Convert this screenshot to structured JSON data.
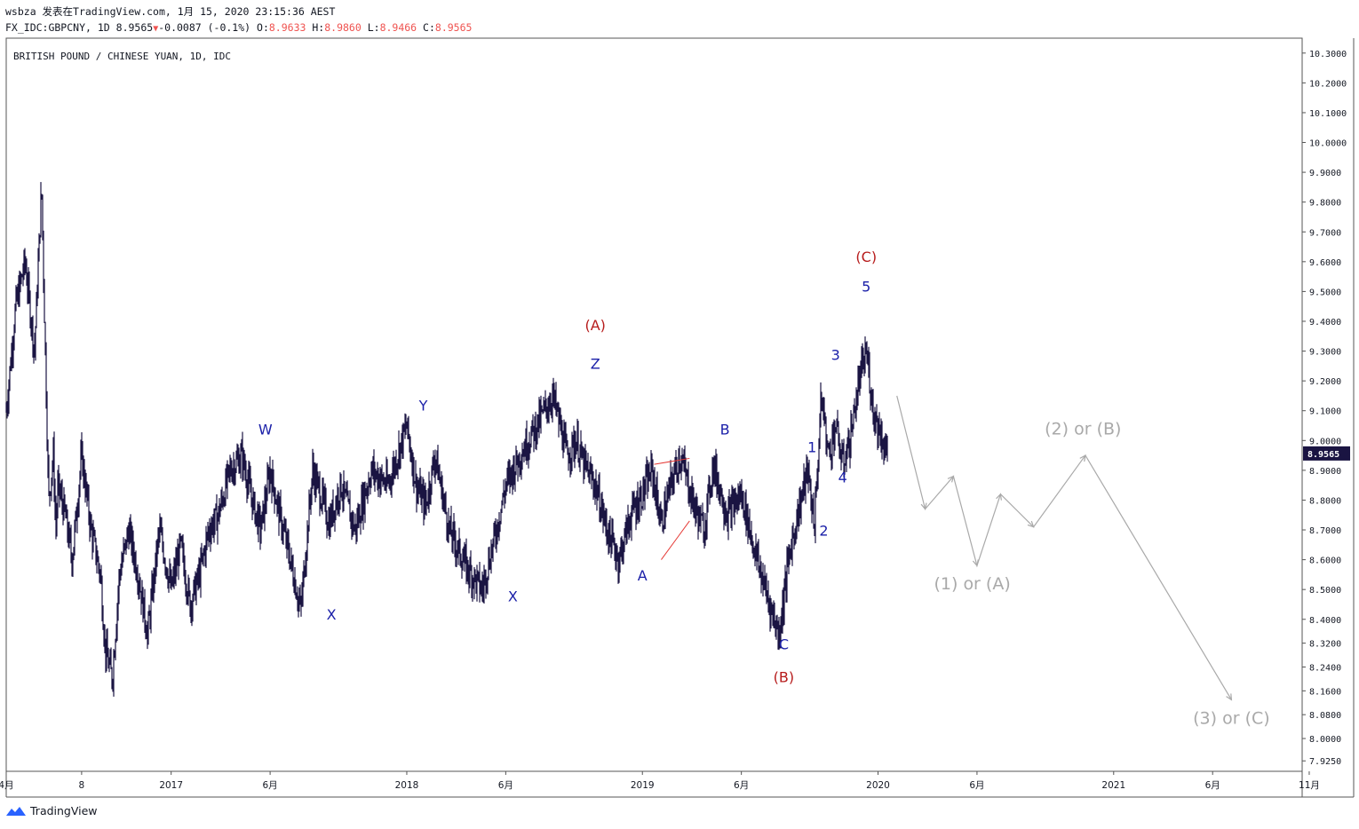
{
  "header": {
    "line1": "wsbza 发表在TradingView.com, 1月 15, 2020 23:15:36 AEST",
    "symbol": "FX_IDC:GBPCNY, 1D",
    "last": "8.9565",
    "change": "-0.0087 (-0.1%)",
    "open_label": "O:",
    "open": "8.9633",
    "high_label": "H:",
    "high": "8.9860",
    "low_label": "L:",
    "low": "8.9466",
    "close_label": "C:",
    "close": "8.9565"
  },
  "footer": {
    "brand": "TradingView"
  },
  "colors": {
    "candle": "#1a1442",
    "wave_blue": "#1a1fa8",
    "wave_red": "#b71c1c",
    "projection": "#a9a9a9",
    "price_tag": "#1a1442",
    "trend_red": "#e53935"
  },
  "chart_data": {
    "type": "line",
    "title": "BRITISH POUND / CHINESE YUAN, 1D, IDC",
    "ylim": [
      7.89,
      10.35
    ],
    "xlim": [
      2016.3,
      2021.8
    ],
    "last_price": "8.9565",
    "y_ticks": [
      {
        "v": 10.3,
        "label": "10.3000"
      },
      {
        "v": 10.2,
        "label": "10.2000"
      },
      {
        "v": 10.1,
        "label": "10.1000"
      },
      {
        "v": 10.0,
        "label": "10.0000"
      },
      {
        "v": 9.9,
        "label": "9.9000"
      },
      {
        "v": 9.8,
        "label": "9.8000"
      },
      {
        "v": 9.7,
        "label": "9.7000"
      },
      {
        "v": 9.6,
        "label": "9.6000"
      },
      {
        "v": 9.5,
        "label": "9.5000"
      },
      {
        "v": 9.4,
        "label": "9.4000"
      },
      {
        "v": 9.3,
        "label": "9.3000"
      },
      {
        "v": 9.2,
        "label": "9.2000"
      },
      {
        "v": 9.1,
        "label": "9.1000"
      },
      {
        "v": 9.0,
        "label": "9.0000"
      },
      {
        "v": 8.9,
        "label": "8.9000"
      },
      {
        "v": 8.8,
        "label": "8.8000"
      },
      {
        "v": 8.7,
        "label": "8.7000"
      },
      {
        "v": 8.6,
        "label": "8.6000"
      },
      {
        "v": 8.5,
        "label": "8.5000"
      },
      {
        "v": 8.4,
        "label": "8.4000"
      },
      {
        "v": 8.32,
        "label": "8.3200"
      },
      {
        "v": 8.24,
        "label": "8.2400"
      },
      {
        "v": 8.16,
        "label": "8.1600"
      },
      {
        "v": 8.08,
        "label": "8.0800"
      },
      {
        "v": 8.0,
        "label": "8.0000"
      },
      {
        "v": 7.925,
        "label": "7.9250"
      }
    ],
    "x_ticks": [
      {
        "t": 2016.3,
        "label": "4月"
      },
      {
        "t": 2016.62,
        "label": "8"
      },
      {
        "t": 2017.0,
        "label": "2017"
      },
      {
        "t": 2017.42,
        "label": "6月"
      },
      {
        "t": 2018.0,
        "label": "2018"
      },
      {
        "t": 2018.42,
        "label": "6月"
      },
      {
        "t": 2019.0,
        "label": "2019"
      },
      {
        "t": 2019.42,
        "label": "6月"
      },
      {
        "t": 2020.0,
        "label": "2020"
      },
      {
        "t": 2020.42,
        "label": "6月"
      },
      {
        "t": 2021.0,
        "label": "2021"
      },
      {
        "t": 2021.42,
        "label": "6月"
      },
      {
        "t": 2021.83,
        "label": "11月"
      }
    ],
    "series": [
      {
        "name": "GBPCNY close (approx.)",
        "x": [
          2016.3,
          2016.34,
          2016.38,
          2016.42,
          2016.45,
          2016.48,
          2016.5,
          2016.51,
          2016.52,
          2016.55,
          2016.58,
          2016.62,
          2016.66,
          2016.7,
          2016.72,
          2016.75,
          2016.78,
          2016.82,
          2016.86,
          2016.9,
          2016.95,
          2017.0,
          2017.04,
          2017.08,
          2017.12,
          2017.16,
          2017.2,
          2017.25,
          2017.3,
          2017.35,
          2017.38,
          2017.42,
          2017.46,
          2017.5,
          2017.55,
          2017.6,
          2017.65,
          2017.67,
          2017.72,
          2017.78,
          2017.85,
          2017.92,
          2018.0,
          2018.04,
          2018.08,
          2018.12,
          2018.18,
          2018.25,
          2018.32,
          2018.38,
          2018.42,
          2018.48,
          2018.55,
          2018.62,
          2018.68,
          2018.72,
          2018.75,
          2018.8,
          2018.85,
          2018.9,
          2018.95,
          2019.0,
          2019.04,
          2019.08,
          2019.12,
          2019.16,
          2019.22,
          2019.26,
          2019.3,
          2019.36,
          2019.42,
          2019.48,
          2019.54,
          2019.58,
          2019.62,
          2019.65,
          2019.7,
          2019.73,
          2019.76,
          2019.79,
          2019.82,
          2019.85,
          2019.88,
          2019.92,
          2019.95,
          2019.98,
          2020.0,
          2020.04
        ],
        "y": [
          9.1,
          9.45,
          9.6,
          9.3,
          9.85,
          8.8,
          8.95,
          8.7,
          8.85,
          8.75,
          8.6,
          8.95,
          8.7,
          8.55,
          8.3,
          8.2,
          8.55,
          8.7,
          8.55,
          8.35,
          8.7,
          8.5,
          8.65,
          8.45,
          8.55,
          8.7,
          8.75,
          8.9,
          8.95,
          8.78,
          8.7,
          8.9,
          8.75,
          8.62,
          8.43,
          8.9,
          8.78,
          8.72,
          8.85,
          8.7,
          8.9,
          8.85,
          9.05,
          8.85,
          8.78,
          8.95,
          8.7,
          8.58,
          8.5,
          8.7,
          8.85,
          8.95,
          9.05,
          9.15,
          8.95,
          9.0,
          8.92,
          8.85,
          8.7,
          8.6,
          8.75,
          8.82,
          8.9,
          8.72,
          8.85,
          8.95,
          8.78,
          8.7,
          8.92,
          8.75,
          8.82,
          8.62,
          8.45,
          8.35,
          8.6,
          8.72,
          8.9,
          8.72,
          9.15,
          8.95,
          9.05,
          8.92,
          9.0,
          9.2,
          9.3,
          9.1,
          9.05,
          8.95
        ]
      },
      {
        "name": "Projection (gray path)",
        "x": [
          2020.08,
          2020.2,
          2020.32,
          2020.42,
          2020.52,
          2020.66,
          2020.88,
          2021.5
        ],
        "y": [
          9.15,
          8.77,
          8.88,
          8.58,
          8.82,
          8.71,
          8.95,
          8.13
        ]
      }
    ],
    "annotations": [
      {
        "text": "W",
        "x": 2017.4,
        "y": 9.02,
        "color": "blue"
      },
      {
        "text": "X",
        "x": 2017.68,
        "y": 8.4,
        "color": "blue"
      },
      {
        "text": "Y",
        "x": 2018.07,
        "y": 9.1,
        "color": "blue"
      },
      {
        "text": "X",
        "x": 2018.45,
        "y": 8.46,
        "color": "blue"
      },
      {
        "text": "Z",
        "x": 2018.8,
        "y": 9.24,
        "color": "blue"
      },
      {
        "text": "(A)",
        "x": 2018.8,
        "y": 9.37,
        "color": "red"
      },
      {
        "text": "A",
        "x": 2019.0,
        "y": 8.53,
        "color": "blue"
      },
      {
        "text": "B",
        "x": 2019.35,
        "y": 9.02,
        "color": "blue"
      },
      {
        "text": "C",
        "x": 2019.6,
        "y": 8.3,
        "color": "blue"
      },
      {
        "text": "(B)",
        "x": 2019.6,
        "y": 8.19,
        "color": "red"
      },
      {
        "text": "1",
        "x": 2019.72,
        "y": 8.96,
        "color": "blue"
      },
      {
        "text": "2",
        "x": 2019.77,
        "y": 8.68,
        "color": "blue"
      },
      {
        "text": "3",
        "x": 2019.82,
        "y": 9.27,
        "color": "blue"
      },
      {
        "text": "4",
        "x": 2019.85,
        "y": 8.86,
        "color": "blue"
      },
      {
        "text": "5",
        "x": 2019.95,
        "y": 9.5,
        "color": "blue"
      },
      {
        "text": "(C)",
        "x": 2019.95,
        "y": 9.6,
        "color": "red"
      },
      {
        "text": "(1) or (A)",
        "x": 2020.4,
        "y": 8.5,
        "color": "gray"
      },
      {
        "text": "(2) or (B)",
        "x": 2020.87,
        "y": 9.02,
        "color": "gray"
      },
      {
        "text": "(3) or (C)",
        "x": 2021.5,
        "y": 8.05,
        "color": "gray"
      }
    ],
    "trendlines": [
      {
        "from": {
          "x": 2019.05,
          "y": 8.92
        },
        "to": {
          "x": 2019.2,
          "y": 8.94
        }
      },
      {
        "from": {
          "x": 2019.08,
          "y": 8.6
        },
        "to": {
          "x": 2019.2,
          "y": 8.73
        }
      }
    ]
  }
}
